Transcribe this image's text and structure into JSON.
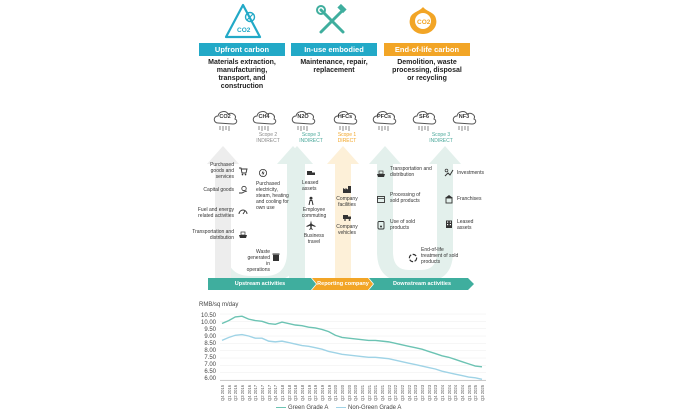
{
  "header": {
    "columns": [
      {
        "tag": "Upfront carbon",
        "description": "Materials extraction, manufacturing, transport, and construction",
        "color": "#22a9c7"
      },
      {
        "tag": "In-use embodied carbon",
        "description": "Maintenance, repair, replacement",
        "color": "#22a9c7"
      },
      {
        "tag": "End-of-life carbon",
        "description": "Demolition, waste processing, disposal or recycling",
        "color": "#f2a526"
      }
    ],
    "icon_labels": {
      "co2_triangle": "CO2",
      "co2_cloud": "CO2"
    }
  },
  "gases": [
    "CO2",
    "CH4",
    "N2O",
    "HFCs",
    "PFCs",
    "SF6",
    "NF3"
  ],
  "scopes": [
    {
      "line1": "Scope 2",
      "line2": "INDIRECT",
      "color": "#8a8a8a"
    },
    {
      "line1": "Scope 3",
      "line2": "INDIRECT",
      "color": "#4aa89a"
    },
    {
      "line1": "Scope 1",
      "line2": "DIRECT",
      "color": "#f2a526"
    },
    {
      "line1": "Scope 3",
      "line2": "INDIRECT",
      "color": "#4aa89a"
    }
  ],
  "upstream_activities": {
    "purchased_goods": "Purchased goods and services",
    "capital_goods": "Capital goods",
    "fuel_energy": "Fuel and energy related activities",
    "transport": "Transportation and distribution",
    "purchased_electricity": "Purchased electricity, steam, heating and cooling for own use",
    "waste": "Waste generated in operations",
    "leased_assets": "Leased assets",
    "commuting": "Employee commuting",
    "business_travel": "Business travel"
  },
  "company_activities": {
    "facilities": "Company facilities",
    "vehicles": "Company vehicles"
  },
  "downstream_activities": {
    "transport": "Transportation and distribution",
    "processing": "Processing of sold products",
    "use": "Use of sold products",
    "end_of_life": "End-of-life treatment of sold products",
    "investments": "Investments",
    "franchises": "Franchises",
    "leased_assets": "Leased assets"
  },
  "ribbon": {
    "upstream": "Upstream activities",
    "reporting": "Reporting company",
    "downstream": "Downstream activities",
    "colors": {
      "upstream": "#3fae9e",
      "reporting": "#f2a526",
      "downstream": "#3fae9e"
    }
  },
  "chart_data": {
    "type": "line",
    "ylabel": "RMB/sq m/day",
    "ylim": [
      6.0,
      10.5
    ],
    "yticks": [
      "10.50",
      "10.00",
      "9.50",
      "9.00",
      "8.50",
      "8.00",
      "7.50",
      "7.00",
      "6.50",
      "6.00"
    ],
    "x": [
      "Q4 2015",
      "Q1 2016",
      "Q2 2016",
      "Q3 2016",
      "Q4 2016",
      "Q1 2017",
      "Q2 2017",
      "Q3 2017",
      "Q4 2017",
      "Q1 2018",
      "Q2 2018",
      "Q3 2018",
      "Q4 2018",
      "Q1 2019",
      "Q2 2019",
      "Q3 2019",
      "Q4 2019",
      "Q1 2020",
      "Q2 2020",
      "Q3 2020",
      "Q4 2020",
      "Q1 2021",
      "Q2 2021",
      "Q3 2021",
      "Q4 2021",
      "Q1 2022",
      "Q2 2022",
      "Q3 2022",
      "Q4 2022",
      "Q1 2023",
      "Q2 2023",
      "Q3 2023",
      "Q4 2023",
      "Q1 2024",
      "Q2 2024",
      "Q3 2024",
      "Q4 2024",
      "Q1 2025",
      "Q2 2025",
      "Q3 2025"
    ],
    "series": [
      {
        "name": "Green Grade A",
        "color": "#6cc3b3",
        "values": [
          9.85,
          10.05,
          10.3,
          10.35,
          10.15,
          10.05,
          10.0,
          9.85,
          9.8,
          9.95,
          9.85,
          9.75,
          9.7,
          9.6,
          9.55,
          9.45,
          9.3,
          9.05,
          8.9,
          8.85,
          8.8,
          8.75,
          8.7,
          8.7,
          8.65,
          8.6,
          8.5,
          8.4,
          8.3,
          8.2,
          8.1,
          7.95,
          7.8,
          7.65,
          7.55,
          7.4,
          7.25,
          7.1,
          6.95,
          6.9
        ]
      },
      {
        "name": "Non-Green Grade A",
        "color": "#9fd3e6",
        "values": [
          8.7,
          8.9,
          9.05,
          9.1,
          9.0,
          8.85,
          8.85,
          8.65,
          8.6,
          8.65,
          8.55,
          8.45,
          8.35,
          8.3,
          8.2,
          8.1,
          7.95,
          7.85,
          7.75,
          7.7,
          7.65,
          7.6,
          7.55,
          7.55,
          7.5,
          7.45,
          7.35,
          7.25,
          7.15,
          7.05,
          6.95,
          6.85,
          6.75,
          6.6,
          6.5,
          6.4,
          6.3,
          6.2,
          6.15,
          6.05
        ]
      }
    ]
  }
}
